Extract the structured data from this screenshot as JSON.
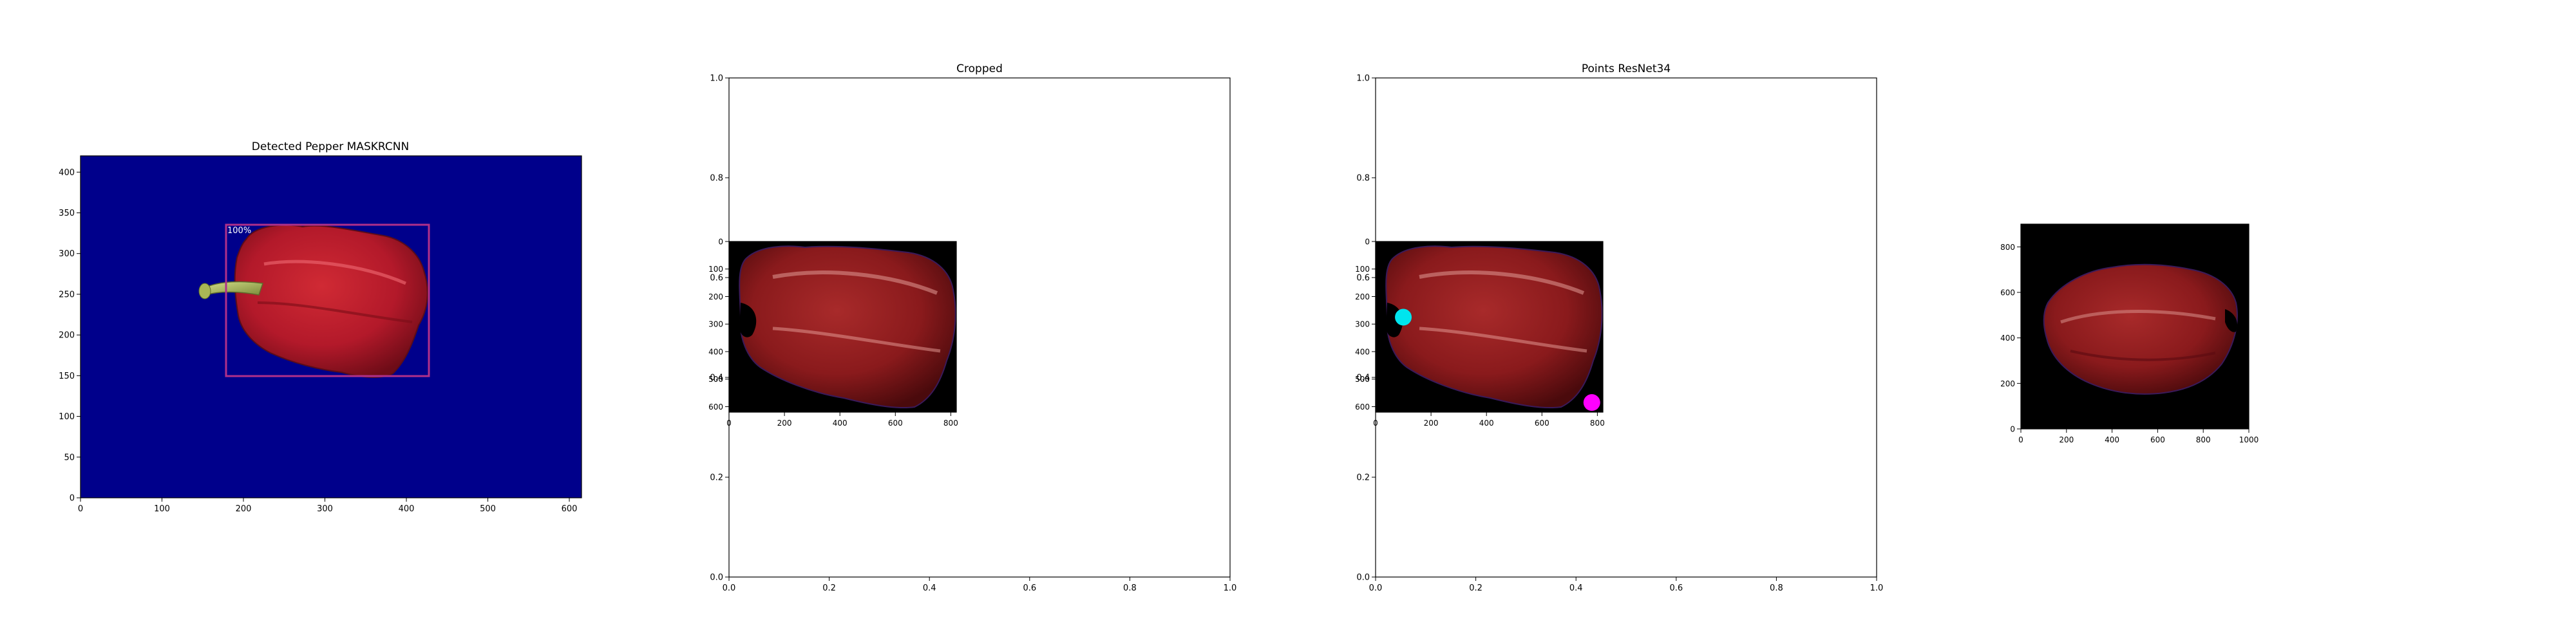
{
  "chart_data": [
    {
      "type": "image",
      "title": "Detected Pepper MASKRCNN",
      "x_ticks": [
        "0",
        "100",
        "200",
        "300",
        "400",
        "500",
        "600"
      ],
      "y_ticks": [
        "0",
        "50",
        "100",
        "150",
        "200",
        "250",
        "300",
        "350",
        "400"
      ],
      "xlim": [
        0,
        615
      ],
      "ylim": [
        420,
        0
      ],
      "background_color": "#00008b",
      "detection": {
        "label": "100%",
        "x0": 178,
        "y0": 86,
        "x1": 428,
        "y1": 272,
        "box_color": "#b0308a"
      }
    },
    {
      "type": "image",
      "title": "Cropped",
      "outer_axes": {
        "x_ticks": [
          "0.0",
          "0.2",
          "0.4",
          "0.6",
          "0.8",
          "1.0"
        ],
        "y_ticks": [
          "0.0",
          "0.2",
          "0.4",
          "0.6",
          "0.8",
          "1.0"
        ],
        "xlim": [
          0,
          1
        ],
        "ylim": [
          0,
          1
        ]
      },
      "inset": {
        "x_ticks": [
          "0",
          "200",
          "400",
          "600",
          "800"
        ],
        "y_ticks": [
          "0",
          "100",
          "200",
          "300",
          "400",
          "500",
          "600"
        ],
        "xlim": [
          0,
          820
        ],
        "ylim": [
          620,
          0
        ]
      }
    },
    {
      "type": "scatter",
      "title": "Points ResNet34",
      "outer_axes": {
        "x_ticks": [
          "0.0",
          "0.2",
          "0.4",
          "0.6",
          "0.8",
          "1.0"
        ],
        "y_ticks": [
          "0.0",
          "0.2",
          "0.4",
          "0.6",
          "0.8",
          "1.0"
        ],
        "xlim": [
          0,
          1
        ],
        "ylim": [
          0,
          1
        ]
      },
      "inset": {
        "x_ticks": [
          "0",
          "200",
          "400",
          "600",
          "800"
        ],
        "y_ticks": [
          "0",
          "100",
          "200",
          "300",
          "400",
          "500",
          "600"
        ],
        "xlim": [
          0,
          820
        ],
        "ylim": [
          620,
          0
        ]
      },
      "points": [
        {
          "x": 100,
          "y": 275,
          "color": "#00e5ee"
        },
        {
          "x": 780,
          "y": 585,
          "color": "#ff00ff"
        }
      ]
    },
    {
      "type": "image",
      "title": "",
      "x_ticks": [
        "0",
        "200",
        "400",
        "600",
        "800",
        "1000"
      ],
      "y_ticks": [
        "0",
        "200",
        "400",
        "600",
        "800"
      ],
      "xlim": [
        0,
        1000
      ],
      "ylim": [
        900,
        0
      ],
      "background_color": "#000000"
    }
  ]
}
